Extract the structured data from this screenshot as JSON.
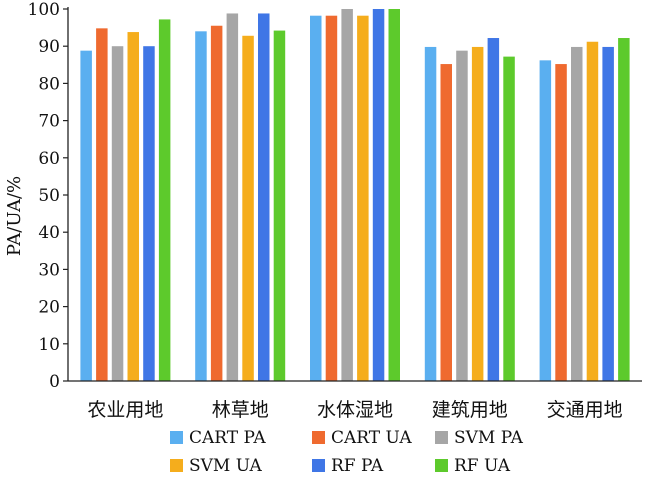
{
  "chart_data": {
    "type": "bar",
    "title": "",
    "xlabel": "",
    "ylabel": "PA/UA/%",
    "ylim": [
      0,
      100
    ],
    "yticks": [
      0,
      10,
      20,
      30,
      40,
      50,
      60,
      70,
      80,
      90,
      100
    ],
    "grid": false,
    "legend_position": "bottom",
    "categories": [
      "农业用地",
      "林草地",
      "水体湿地",
      "建筑用地",
      "交通用地"
    ],
    "series": [
      {
        "name": "CART PA",
        "color": "#5aaff0",
        "values": [
          88.8,
          94.0,
          98.2,
          89.8,
          86.2
        ]
      },
      {
        "name": "CART UA",
        "color": "#ef6a2f",
        "values": [
          94.8,
          95.5,
          98.2,
          85.2,
          85.2
        ]
      },
      {
        "name": "SVM PA",
        "color": "#a6a6a6",
        "values": [
          90.0,
          98.8,
          100.0,
          88.8,
          89.8
        ]
      },
      {
        "name": "SVM UA",
        "color": "#f5ad1c",
        "values": [
          93.8,
          92.8,
          98.2,
          89.8,
          91.2
        ]
      },
      {
        "name": "RF PA",
        "color": "#3f76e6",
        "values": [
          90.0,
          98.8,
          100.0,
          92.2,
          89.8
        ]
      },
      {
        "name": "RF UA",
        "color": "#5dca2c",
        "values": [
          97.2,
          94.2,
          100.0,
          87.2,
          92.2
        ]
      }
    ]
  }
}
